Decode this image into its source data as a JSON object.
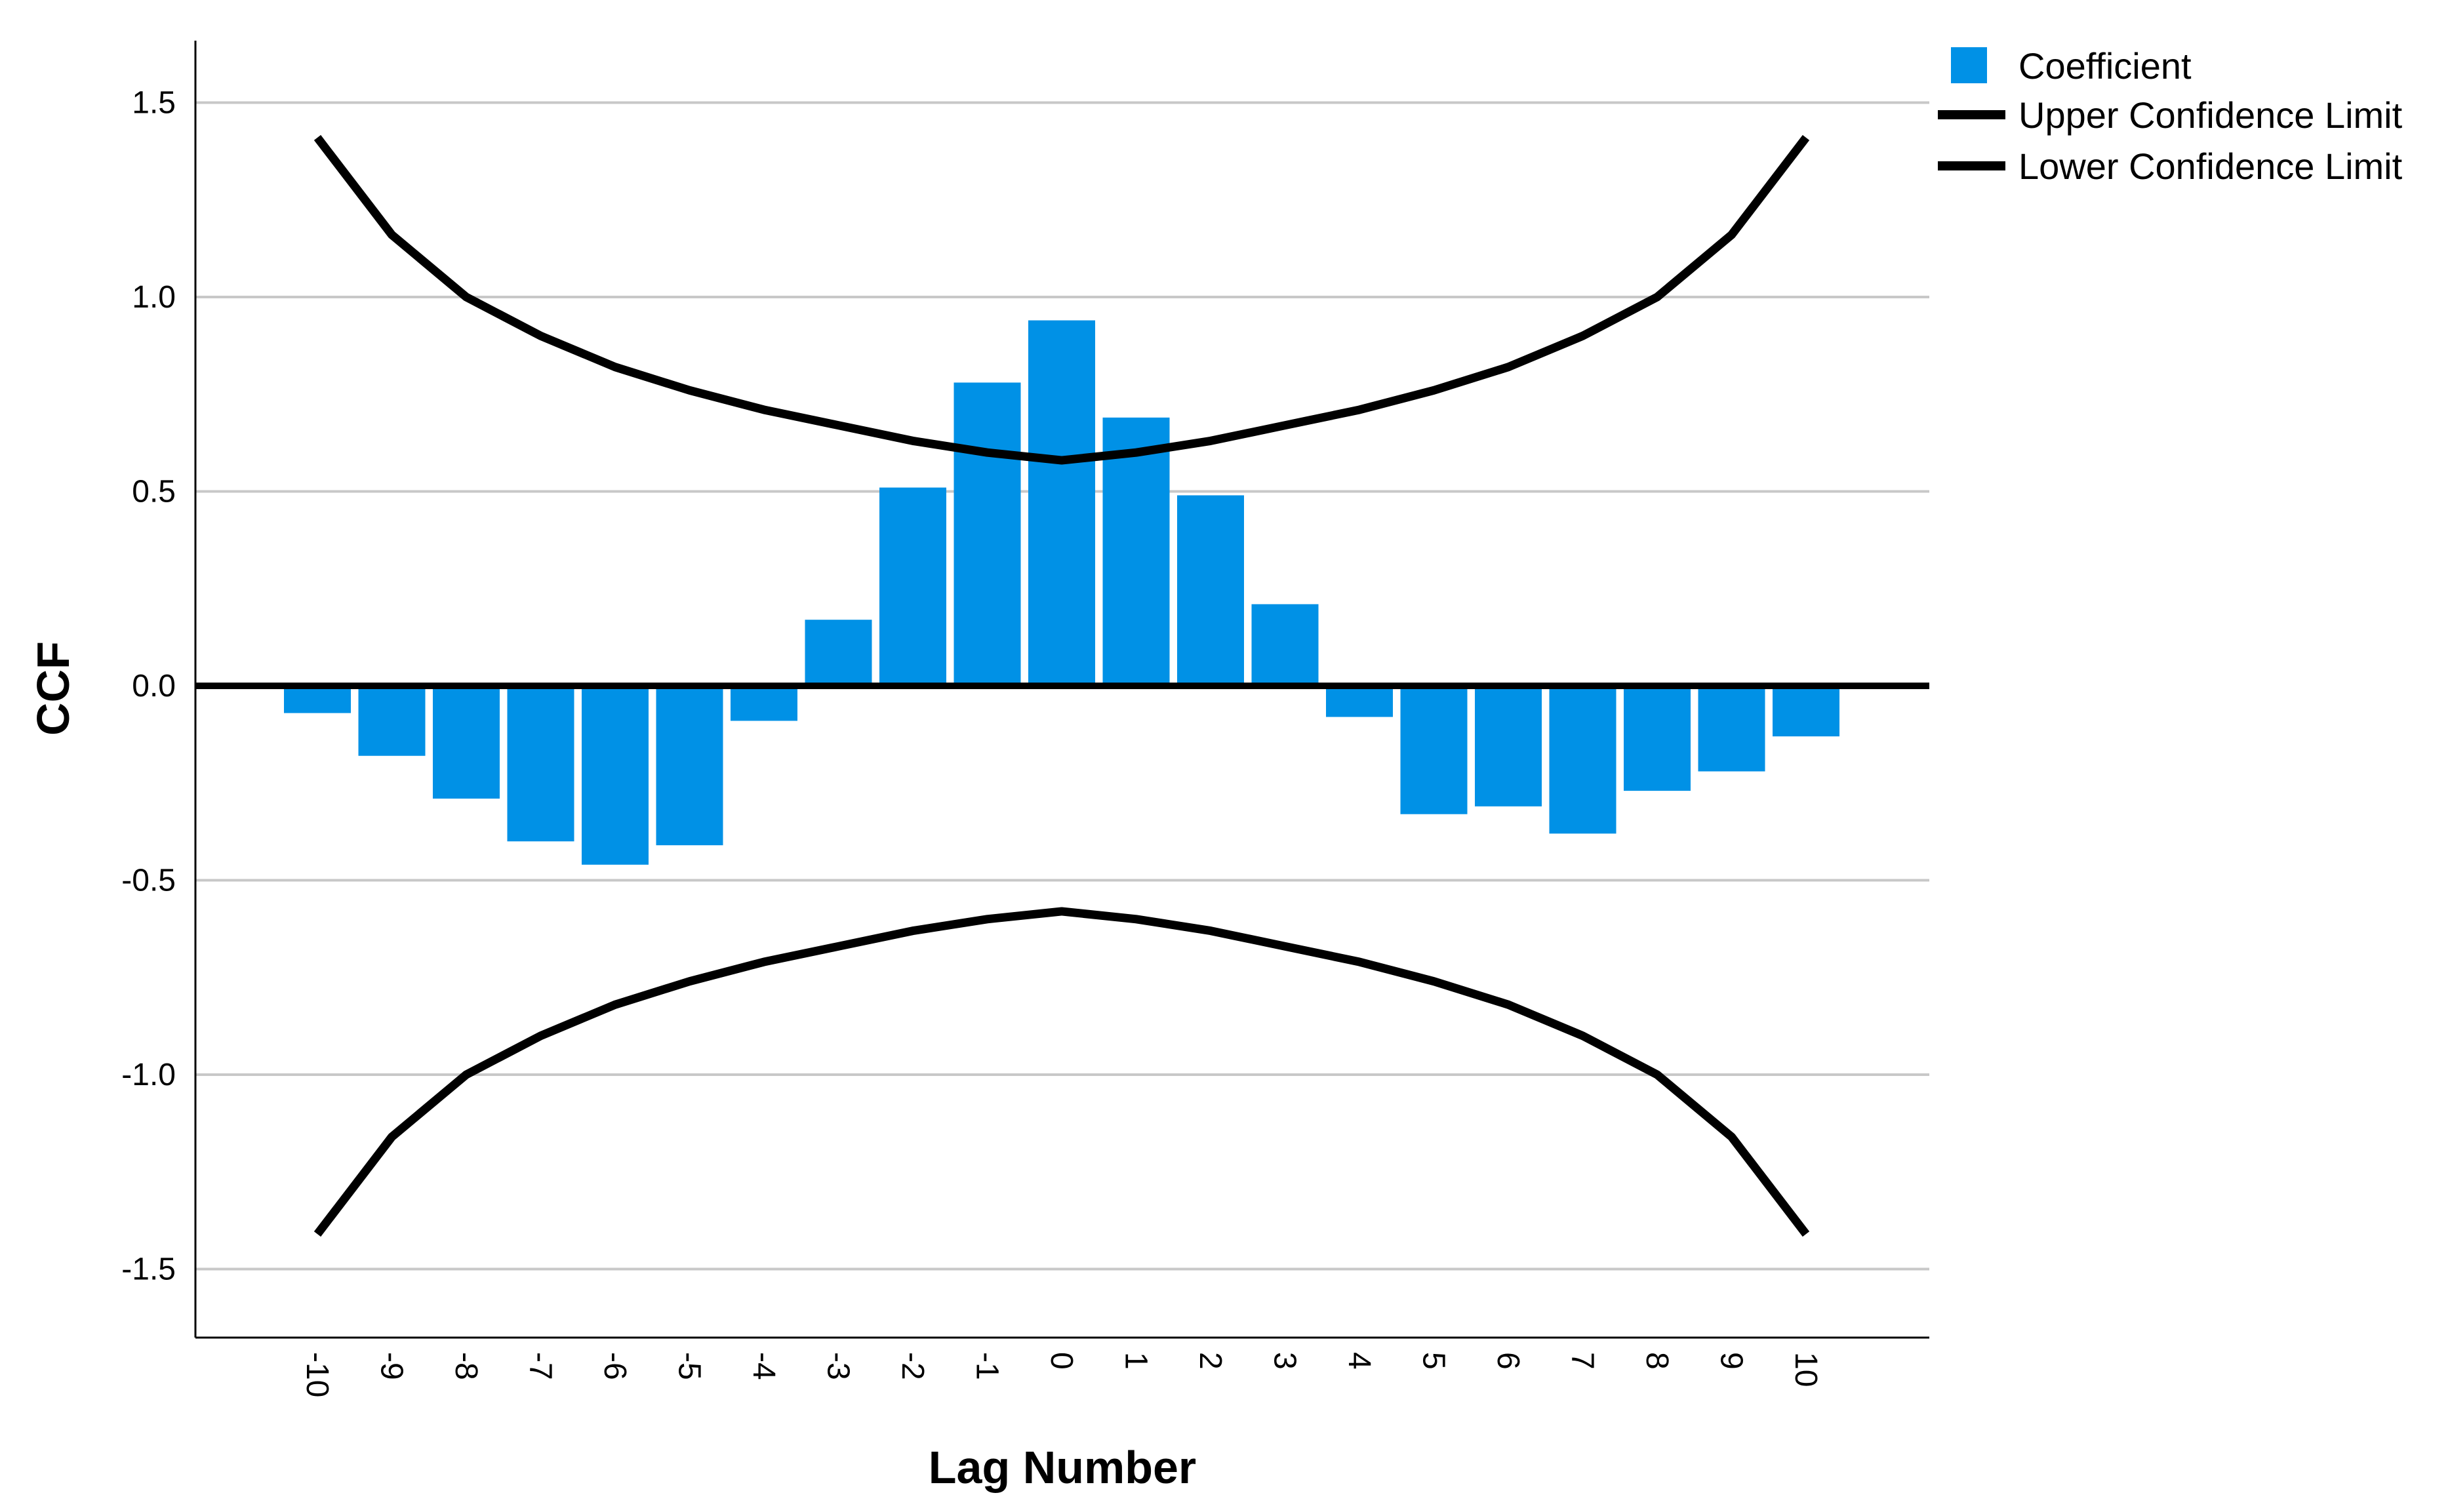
{
  "chart_data": {
    "type": "bar",
    "xlabel": "Lag Number",
    "ylabel": "CCF",
    "ylim": [
      -1.65,
      1.65
    ],
    "yticks": [
      "1.5",
      "1.0",
      "0.5",
      "0.0",
      "-0.5",
      "-1.0",
      "-1.5"
    ],
    "categories": [
      "-10",
      "-9",
      "-8",
      "-7",
      "-6",
      "-5",
      "-4",
      "-3",
      "-2",
      "-1",
      "0",
      "1",
      "2",
      "3",
      "4",
      "5",
      "6",
      "7",
      "8",
      "9",
      "10"
    ],
    "grid": true,
    "legend_position": "top-right",
    "colors": {
      "bars": "#0091E6",
      "lines": "#000000",
      "grid": "#C8C8C8"
    },
    "legend": [
      "Coefficient",
      "Upper Confidence Limit",
      "Lower Confidence Limit"
    ],
    "series": [
      {
        "name": "Coefficient",
        "type": "bar",
        "values": [
          -0.07,
          -0.18,
          -0.29,
          -0.4,
          -0.46,
          -0.41,
          -0.09,
          0.17,
          0.51,
          0.78,
          0.94,
          0.69,
          0.49,
          0.21,
          -0.08,
          -0.33,
          -0.31,
          -0.38,
          -0.27,
          -0.22,
          -0.13
        ]
      },
      {
        "name": "Upper Confidence Limit",
        "type": "line",
        "values": [
          1.41,
          1.16,
          1.0,
          0.9,
          0.82,
          0.76,
          0.71,
          0.67,
          0.63,
          0.6,
          0.58,
          0.6,
          0.63,
          0.67,
          0.71,
          0.76,
          0.82,
          0.9,
          1.0,
          1.16,
          1.41
        ]
      },
      {
        "name": "Lower Confidence Limit",
        "type": "line",
        "values": [
          -1.41,
          -1.16,
          -1.0,
          -0.9,
          -0.82,
          -0.76,
          -0.71,
          -0.67,
          -0.63,
          -0.6,
          -0.58,
          -0.6,
          -0.63,
          -0.67,
          -0.71,
          -0.76,
          -0.82,
          -0.9,
          -1.0,
          -1.16,
          -1.41
        ]
      }
    ]
  }
}
